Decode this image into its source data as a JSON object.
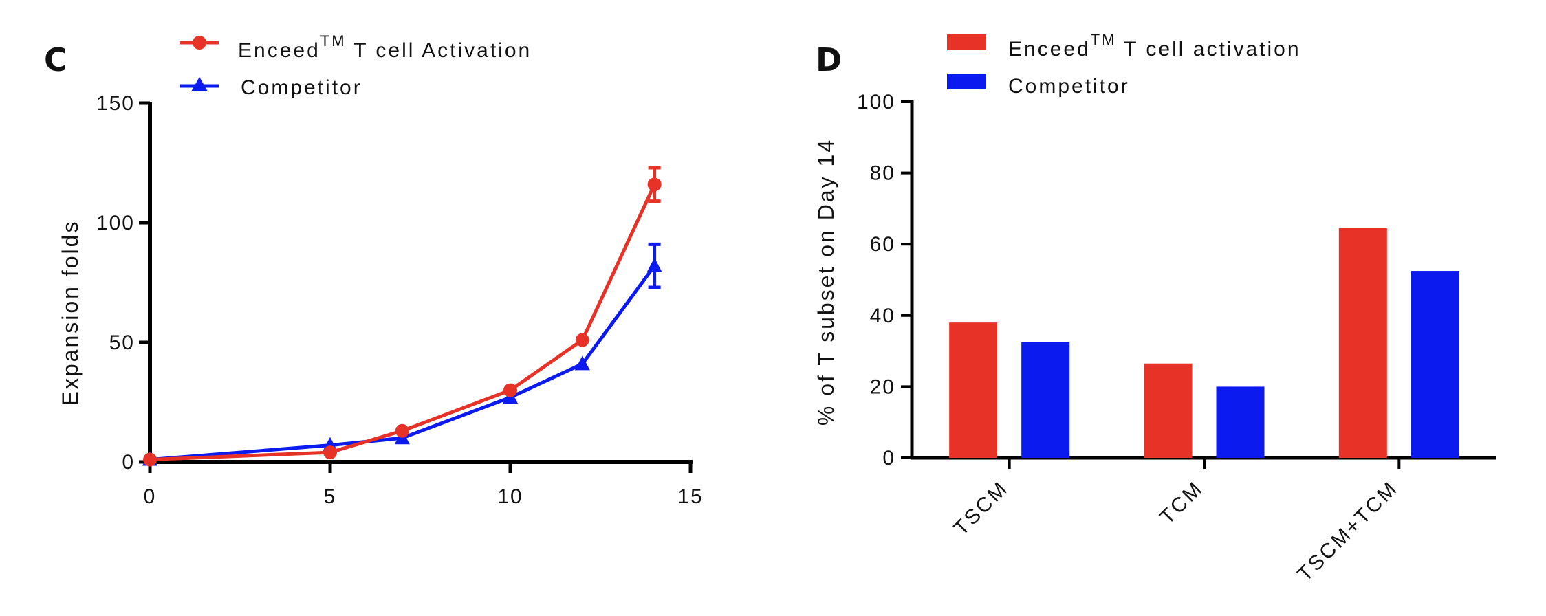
{
  "colors": {
    "enceed": "#e63227",
    "competitor": "#0b1aef",
    "axis": "#000000"
  },
  "chart_data": [
    {
      "panel": "C",
      "type": "line",
      "ylabel": "Expansion folds",
      "xlabel": "",
      "xlim": [
        0,
        15
      ],
      "ylim": [
        0,
        150
      ],
      "xticks": [
        "0",
        "5",
        "10",
        "15"
      ],
      "yticks": [
        "0",
        "50",
        "100",
        "150"
      ],
      "legend_position": "top-left (above plot)",
      "series": [
        {
          "name": "Enceed",
          "name_sup": "TM",
          "name_rest": " T cell Activation",
          "marker": "circle",
          "x": [
            0,
            5,
            7,
            10,
            12,
            14
          ],
          "y": [
            1,
            4,
            13,
            30,
            51,
            116
          ],
          "err": [
            0,
            0,
            0,
            0,
            0,
            7
          ]
        },
        {
          "name": "Competitor",
          "marker": "triangle",
          "x": [
            0,
            5,
            7,
            10,
            12,
            14
          ],
          "y": [
            1,
            7,
            10,
            27,
            41,
            82
          ],
          "err": [
            0,
            0,
            0,
            2,
            0,
            9
          ]
        }
      ]
    },
    {
      "panel": "D",
      "type": "bar",
      "ylabel": "% of T subset on Day 14",
      "xlabel": "",
      "ylim": [
        0,
        100
      ],
      "yticks": [
        "0",
        "20",
        "40",
        "60",
        "80",
        "100"
      ],
      "categories": [
        "TSCM",
        "TCM",
        "TSCM+TCM"
      ],
      "legend_position": "top-left (above plot)",
      "series": [
        {
          "name": "Enceed",
          "name_sup": "TM",
          "name_rest": " T cell activation",
          "values": [
            38,
            26.5,
            64.5
          ]
        },
        {
          "name": "Competitor",
          "values": [
            32.5,
            20,
            52.5
          ]
        }
      ]
    }
  ]
}
